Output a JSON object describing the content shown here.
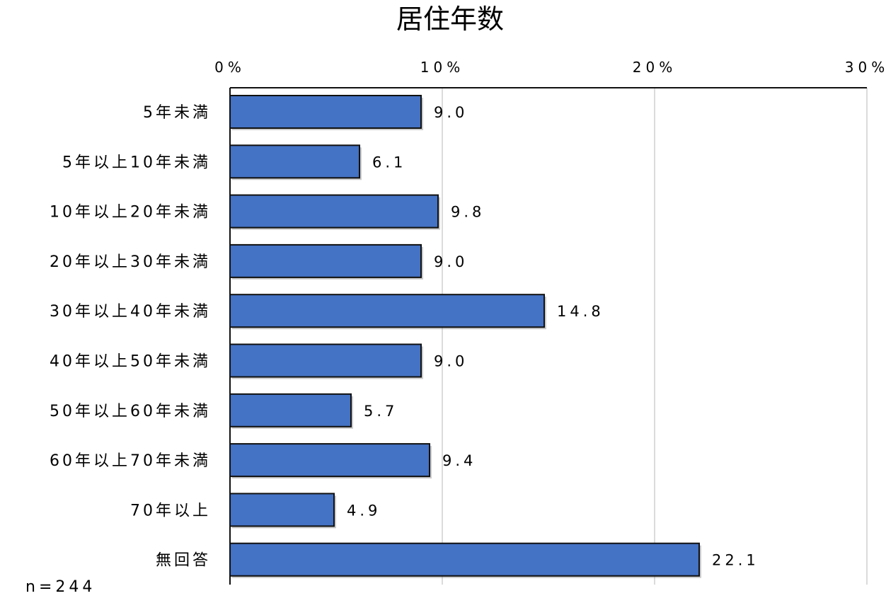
{
  "chart_data": {
    "type": "bar",
    "orientation": "horizontal",
    "title": "居住年数",
    "categories": [
      "5年未満",
      "5年以上10年未満",
      "10年以上20年未満",
      "20年以上30年未満",
      "30年以上40年未満",
      "40年以上50年未満",
      "50年以上60年未満",
      "60年以上70年未満",
      "70年以上",
      "無回答"
    ],
    "values": [
      9.0,
      6.1,
      9.8,
      9.0,
      14.8,
      9.0,
      5.7,
      9.4,
      4.9,
      22.1
    ],
    "value_labels": [
      "9.0",
      "6.1",
      "9.8",
      "9.0",
      "14.8",
      "9.0",
      "5.7",
      "9.4",
      "4.9",
      "22.1"
    ],
    "xlim": [
      0,
      30
    ],
    "xticks": [
      0,
      10,
      20,
      30
    ],
    "xtick_labels": [
      "0%",
      "10%",
      "20%",
      "30%"
    ],
    "axis_position": "top",
    "grid": true,
    "legend": "none",
    "bar_color": "#4472C4",
    "bar_edge_color": "#111111",
    "grid_color": "#cfcfcf",
    "note": "n=244"
  }
}
